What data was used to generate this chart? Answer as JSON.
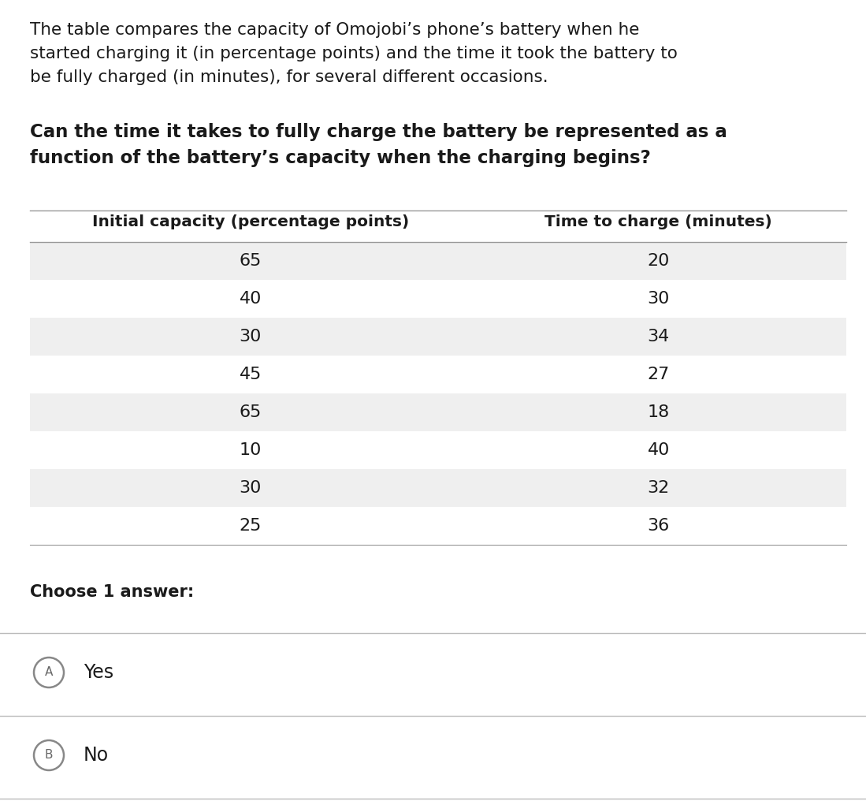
{
  "paragraph_text_lines": [
    "The table compares the capacity of Omojobi’s phone’s battery when he",
    "started charging it (in percentage points) and the time it took the battery to",
    "be fully charged (in minutes), for several different occasions."
  ],
  "question_text_lines": [
    "Can the time it takes to fully charge the battery be represented as a",
    "function of the battery’s capacity when the charging begins?"
  ],
  "col1_header": "Initial capacity (percentage points)",
  "col2_header": "Time to charge (minutes)",
  "table_data": [
    [
      65,
      20
    ],
    [
      40,
      30
    ],
    [
      30,
      34
    ],
    [
      45,
      27
    ],
    [
      65,
      18
    ],
    [
      10,
      40
    ],
    [
      30,
      32
    ],
    [
      25,
      36
    ]
  ],
  "shaded_rows": [
    0,
    2,
    4,
    6
  ],
  "row_shade_color": "#efefef",
  "bg_color": "#ffffff",
  "choose_text": "Choose 1 answer:",
  "answer_A": "Yes",
  "answer_B": "No",
  "para_fontsize": 15.5,
  "question_fontsize": 16.5,
  "table_header_fontsize": 14.5,
  "table_data_fontsize": 16,
  "answer_fontsize": 17,
  "choose_fontsize": 15
}
